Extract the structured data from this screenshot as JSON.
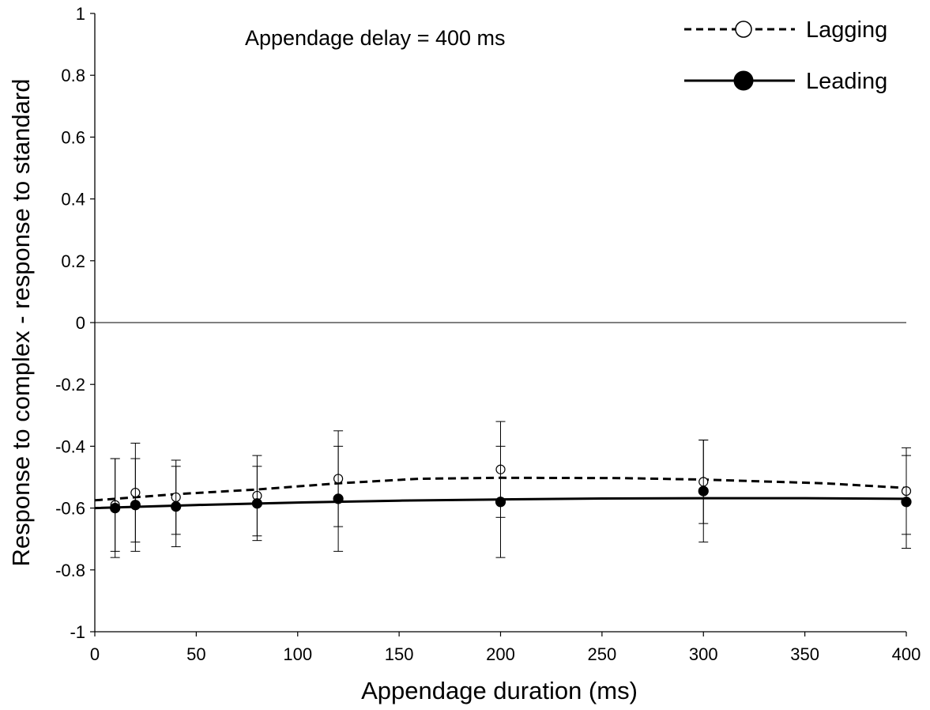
{
  "chart_data": {
    "type": "line",
    "title": "",
    "annotation": "Appendage delay = 400 ms",
    "xlabel": "Appendage duration (ms)",
    "ylabel": "Response to complex - response to standard",
    "xlim": [
      0,
      400
    ],
    "ylim": [
      -1,
      1
    ],
    "xticks": [
      0,
      50,
      100,
      150,
      200,
      250,
      300,
      350,
      400
    ],
    "xtick_labels": [
      "0",
      "50",
      "100",
      "150",
      "200",
      "250",
      "300",
      "350",
      "400"
    ],
    "yticks": [
      1,
      0.8,
      0.6,
      0.4,
      0.2,
      0,
      -0.2,
      -0.4,
      -0.6,
      -0.8,
      -1
    ],
    "ytick_labels": [
      "1",
      "0.8",
      "0.6",
      "0.4",
      "0.2",
      "0",
      "-0.2",
      "-0.4",
      "-0.6",
      "-0.8",
      "-1"
    ],
    "reference_line_y": 0,
    "grid": false,
    "legend_position": "top-right",
    "series": [
      {
        "name": "Lagging",
        "marker": "open-circle",
        "line_style": "dashed",
        "color": "#000000",
        "points": [
          {
            "x": 10,
            "y": -0.59,
            "err": 0.15
          },
          {
            "x": 20,
            "y": -0.55,
            "err": 0.16
          },
          {
            "x": 40,
            "y": -0.565,
            "err": 0.12
          },
          {
            "x": 80,
            "y": -0.56,
            "err": 0.13
          },
          {
            "x": 120,
            "y": -0.505,
            "err": 0.155
          },
          {
            "x": 200,
            "y": -0.475,
            "err": 0.155
          },
          {
            "x": 300,
            "y": -0.515,
            "err": 0.135
          },
          {
            "x": 400,
            "y": -0.545,
            "err": 0.14
          }
        ],
        "fit": [
          {
            "x": 0,
            "y": -0.575
          },
          {
            "x": 40,
            "y": -0.555
          },
          {
            "x": 80,
            "y": -0.54
          },
          {
            "x": 120,
            "y": -0.52
          },
          {
            "x": 160,
            "y": -0.505
          },
          {
            "x": 200,
            "y": -0.502
          },
          {
            "x": 260,
            "y": -0.503
          },
          {
            "x": 300,
            "y": -0.508
          },
          {
            "x": 360,
            "y": -0.52
          },
          {
            "x": 400,
            "y": -0.535
          }
        ]
      },
      {
        "name": "Leading",
        "marker": "filled-circle",
        "line_style": "solid",
        "color": "#000000",
        "points": [
          {
            "x": 10,
            "y": -0.6,
            "err": 0.16
          },
          {
            "x": 20,
            "y": -0.59,
            "err": 0.15
          },
          {
            "x": 40,
            "y": -0.595,
            "err": 0.13
          },
          {
            "x": 80,
            "y": -0.585,
            "err": 0.12
          },
          {
            "x": 120,
            "y": -0.57,
            "err": 0.17
          },
          {
            "x": 200,
            "y": -0.58,
            "err": 0.18
          },
          {
            "x": 300,
            "y": -0.545,
            "err": 0.165
          },
          {
            "x": 400,
            "y": -0.58,
            "err": 0.15
          }
        ],
        "fit": [
          {
            "x": 0,
            "y": -0.6
          },
          {
            "x": 50,
            "y": -0.59
          },
          {
            "x": 100,
            "y": -0.582
          },
          {
            "x": 150,
            "y": -0.576
          },
          {
            "x": 200,
            "y": -0.572
          },
          {
            "x": 250,
            "y": -0.569
          },
          {
            "x": 300,
            "y": -0.568
          },
          {
            "x": 350,
            "y": -0.568
          },
          {
            "x": 400,
            "y": -0.57
          }
        ]
      }
    ]
  }
}
